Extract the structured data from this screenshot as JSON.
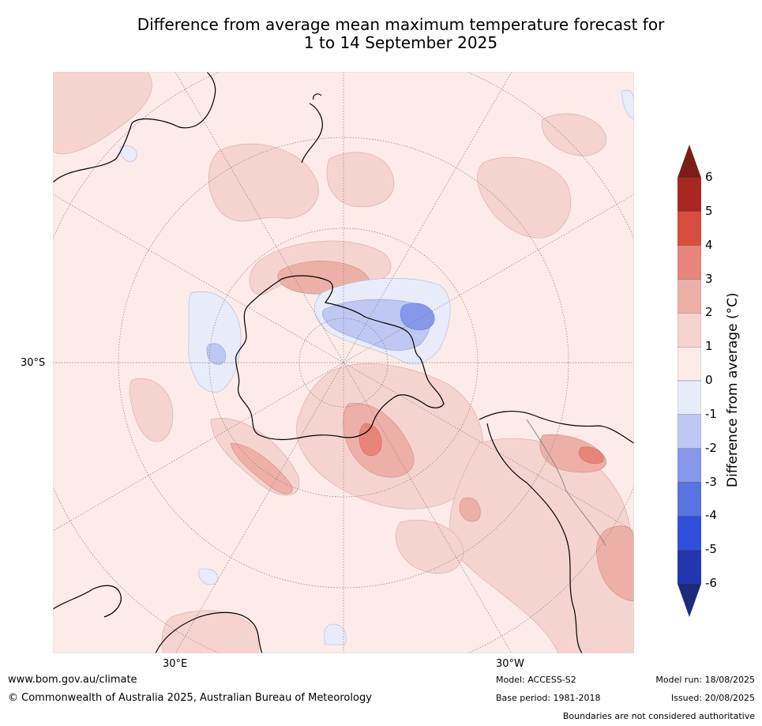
{
  "title_line1": "Difference from average mean maximum temperature forecast for",
  "title_line2": "1 to 14 September 2025",
  "graticule": {
    "lat_label": "30°S",
    "lon_left": "30°E",
    "lon_right": "30°W"
  },
  "colorbar": {
    "label": "Difference from average (°C)",
    "ticks": [
      "6",
      "5",
      "4",
      "3",
      "2",
      "1",
      "0",
      "-1",
      "-2",
      "-3",
      "-4",
      "-5",
      "-6"
    ],
    "colors": [
      "#a8281f",
      "#d94d3e",
      "#e8857a",
      "#edb0a8",
      "#f5d4cf",
      "#fcebe8",
      "#e8ebfa",
      "#bec8f2",
      "#8598ea",
      "#5873e2",
      "#2f4fdb",
      "#2237ad"
    ],
    "over_color": "#7c1e15",
    "under_color": "#1b2a7c"
  },
  "footer": {
    "url": "www.bom.gov.au/climate",
    "copyright": "© Commonwealth of Australia 2025, Australian Bureau of Meteorology",
    "model": "Model: ACCESS-S2",
    "base_period": "Base period: 1981-2018",
    "model_run": "Model run: 18/08/2025",
    "issued": "Issued: 20/08/2025",
    "boundaries": "Boundaries are not considered authoritative"
  }
}
